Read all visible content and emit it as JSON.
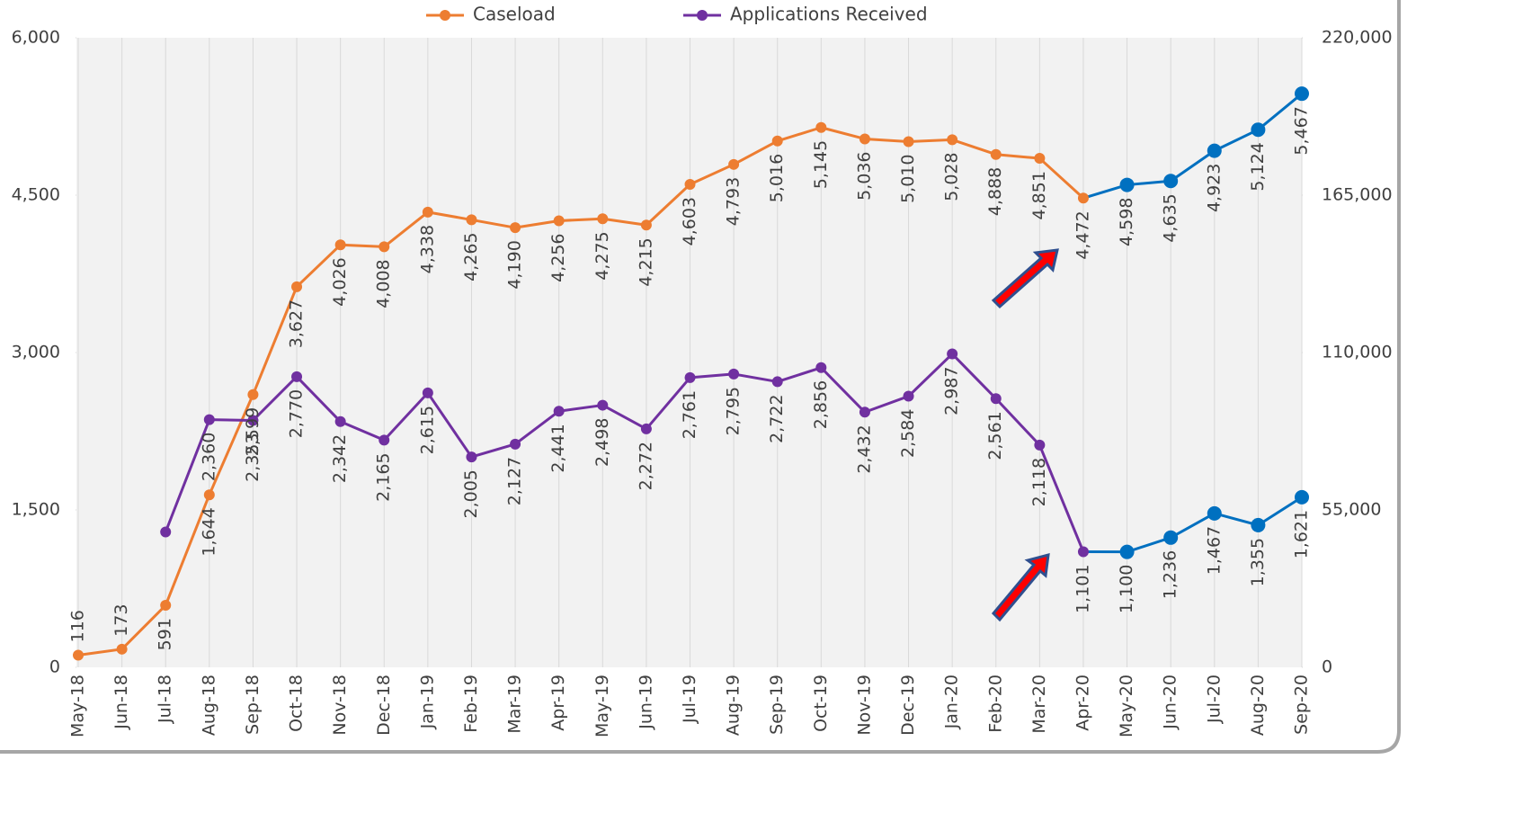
{
  "chart_data": {
    "type": "line",
    "categories": [
      "May-18",
      "Jun-18",
      "Jul-18",
      "Aug-18",
      "Sep-18",
      "Oct-18",
      "Nov-18",
      "Dec-18",
      "Jan-19",
      "Feb-19",
      "Mar-19",
      "Apr-19",
      "May-19",
      "Jun-19",
      "Jul-19",
      "Aug-19",
      "Sep-19",
      "Oct-19",
      "Nov-19",
      "Dec-19",
      "Jan-20",
      "Feb-20",
      "Mar-20",
      "Apr-20",
      "May-20",
      "Jun-20",
      "Jul-20",
      "Aug-20",
      "Sep-20"
    ],
    "series": [
      {
        "name": "Caseload",
        "color": "#ed7d31",
        "values": [
          116,
          173,
          591,
          1644,
          2599,
          3627,
          4026,
          4008,
          4338,
          4265,
          4190,
          4256,
          4275,
          4215,
          4603,
          4793,
          5016,
          5145,
          5036,
          5010,
          5028,
          4888,
          4851,
          4472,
          4598,
          4635,
          4923,
          5124,
          5467
        ],
        "value_labels": [
          "116",
          "173",
          "591",
          "1,644",
          "2,599",
          "3,627",
          "4,026",
          "4,008",
          "4,338",
          "4,265",
          "4,190",
          "4,256",
          "4,275",
          "4,215",
          "4,603",
          "4,793",
          "5,016",
          "5,145",
          "5,036",
          "5,010",
          "5,028",
          "4,888",
          "4,851",
          "4,472",
          "4,598",
          "4,635",
          "4,923",
          "5,124",
          "5,467"
        ],
        "point_colors": [
          "#ed7d31",
          "#ed7d31",
          "#ed7d31",
          "#ed7d31",
          "#ed7d31",
          "#ed7d31",
          "#ed7d31",
          "#ed7d31",
          "#ed7d31",
          "#ed7d31",
          "#ed7d31",
          "#ed7d31",
          "#ed7d31",
          "#ed7d31",
          "#ed7d31",
          "#ed7d31",
          "#ed7d31",
          "#ed7d31",
          "#ed7d31",
          "#ed7d31",
          "#ed7d31",
          "#ed7d31",
          "#ed7d31",
          "#ed7d31",
          "#0070c0",
          "#0070c0",
          "#0070c0",
          "#0070c0",
          "#0070c0"
        ]
      },
      {
        "name": "Applications Received",
        "color": "#7030a0",
        "values": [
          null,
          null,
          1290,
          2360,
          2353,
          2770,
          2342,
          2165,
          2615,
          2005,
          2127,
          2441,
          2498,
          2272,
          2761,
          2795,
          2722,
          2856,
          2432,
          2584,
          2987,
          2561,
          2118,
          1101,
          1100,
          1236,
          1467,
          1355,
          1621
        ],
        "value_labels": [
          null,
          null,
          null,
          "2,360",
          "2,353",
          "2,770",
          "2,342",
          "2,165",
          "2,615",
          "2,005",
          "2,127",
          "2,441",
          "2,498",
          "2,272",
          "2,761",
          "2,795",
          "2,722",
          "2,856",
          "2,432",
          "2,584",
          "2,987",
          "2,561",
          "2,118",
          "1,101",
          "1,100",
          "1,236",
          "1,467",
          "1,355",
          "1,621"
        ],
        "point_colors": [
          null,
          null,
          "#7030a0",
          "#7030a0",
          "#7030a0",
          "#7030a0",
          "#7030a0",
          "#7030a0",
          "#7030a0",
          "#7030a0",
          "#7030a0",
          "#7030a0",
          "#7030a0",
          "#7030a0",
          "#7030a0",
          "#7030a0",
          "#7030a0",
          "#7030a0",
          "#7030a0",
          "#7030a0",
          "#7030a0",
          "#7030a0",
          "#7030a0",
          "#7030a0",
          "#0070c0",
          "#0070c0",
          "#0070c0",
          "#0070c0",
          "#0070c0"
        ]
      }
    ],
    "ylim": [
      0,
      6000
    ],
    "yticks": [
      0,
      {
        "value": 1500,
        "label": "1,500"
      },
      {
        "value": 3000,
        "label": "3,000"
      },
      {
        "value": 4500,
        "label": "4,500"
      },
      {
        "value": 6000,
        "label": "6,000"
      }
    ],
    "y2lim": [
      0,
      220000
    ],
    "y2ticks": [
      0,
      {
        "value": 55000,
        "label": "55,000"
      },
      {
        "value": 110000,
        "label": "110,000"
      },
      {
        "value": 165000,
        "label": "165,000"
      },
      {
        "value": 220000,
        "label": "220,000"
      }
    ],
    "legend": "top"
  }
}
